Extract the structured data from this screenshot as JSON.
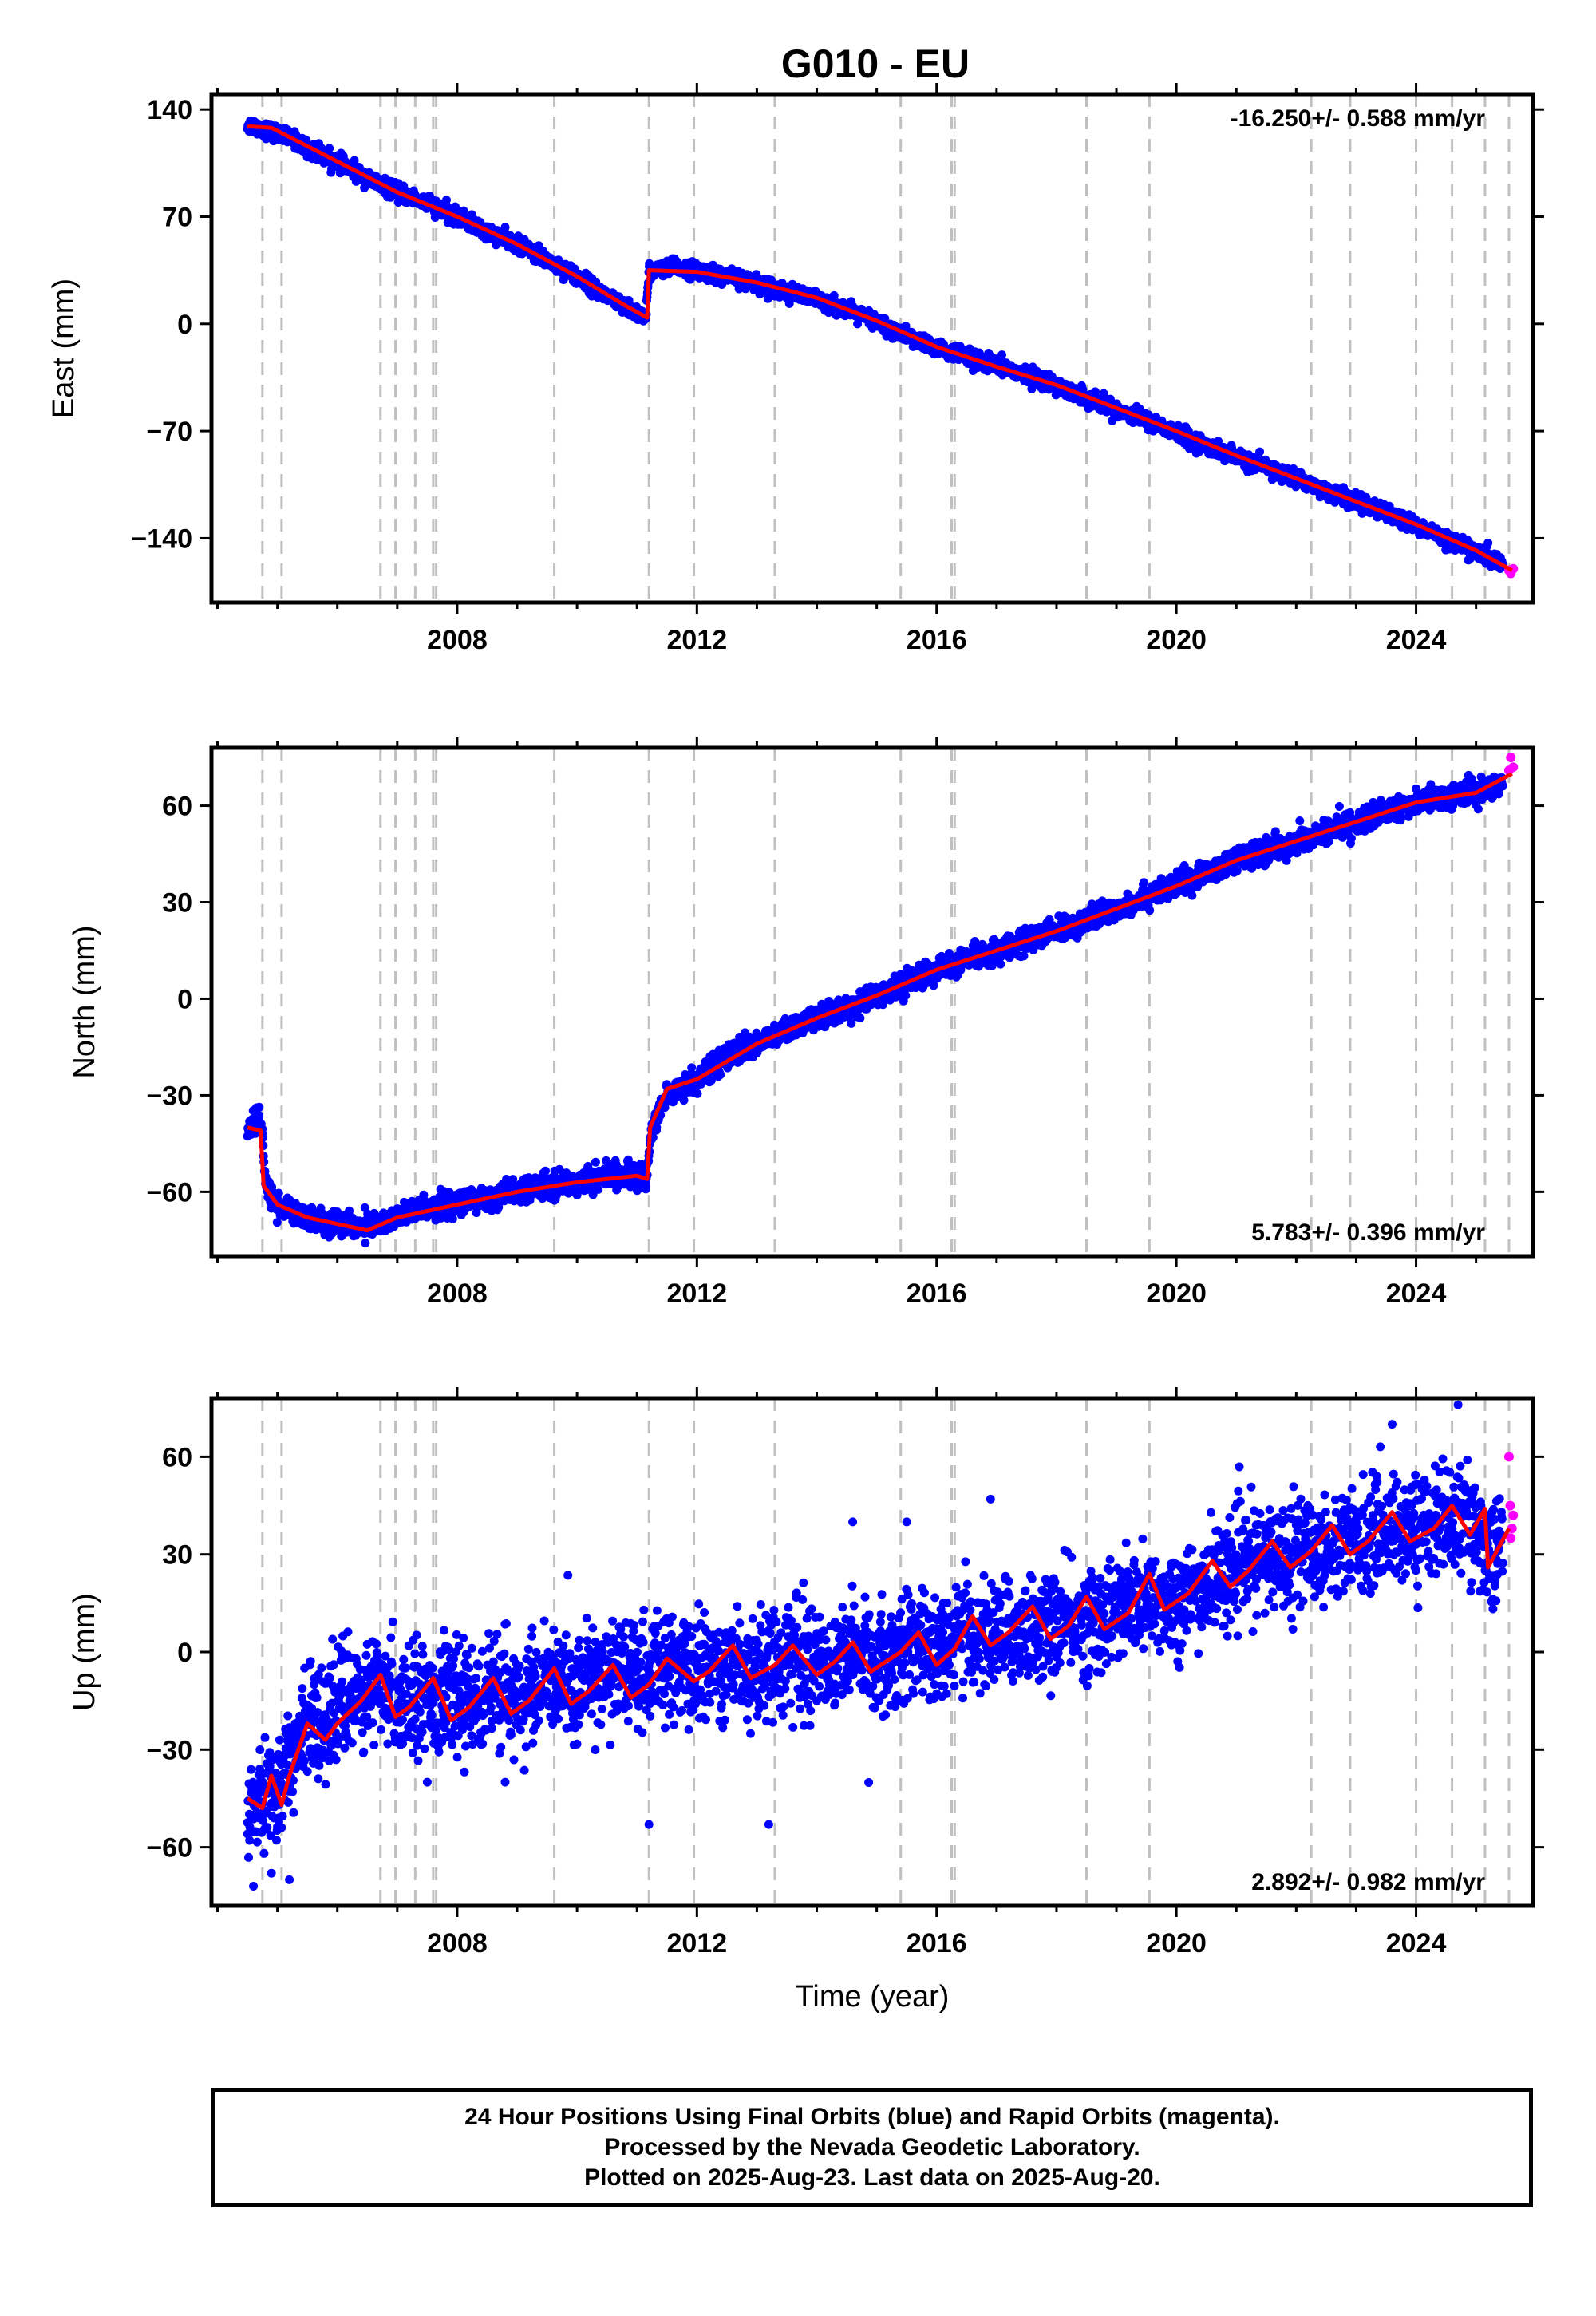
{
  "title": "G010 - EU",
  "colors": {
    "final_points": "#0000ff",
    "rapid_points": "#ff00ff",
    "model_line": "#ff0000",
    "event_lines": "#c0c0c0",
    "frame": "#000000"
  },
  "caption": {
    "line1": "24 Hour Positions Using Final Orbits (blue) and Rapid Orbits (magenta).",
    "line2": "Processed by the Nevada Geodetic Laboratory.",
    "line3": "Plotted on 2025-Aug-23. Last data on 2025-Aug-20."
  },
  "chart_data": [
    {
      "type": "scatter",
      "title": "G010 - EU",
      "xlabel": "",
      "ylabel": "East (mm)",
      "xlim": [
        2003.9,
        2025.95
      ],
      "ylim": [
        -182,
        150
      ],
      "xticks": [
        2008,
        2012,
        2016,
        2020,
        2024
      ],
      "yticks": [
        140,
        70,
        0,
        -70,
        -140
      ],
      "ytick_labels": [
        "140",
        "70",
        "0",
        "−70",
        "−140"
      ],
      "rate_label": "-16.250+/- 0.588 mm/yr",
      "rate_position": "top-right",
      "grid": false,
      "event_lines": [
        2004.75,
        2005.07,
        2006.72,
        2006.97,
        2007.3,
        2007.6,
        2007.65,
        2009.62,
        2011.2,
        2011.95,
        2013.3,
        2015.4,
        2016.25,
        2016.3,
        2018.5,
        2019.55,
        2022.25,
        2022.9,
        2024.0,
        2024.6,
        2025.15,
        2025.55
      ],
      "noise_mm": 2.5,
      "outliers": [],
      "series": [
        {
          "name": "Final Orbits",
          "color": "#0000ff",
          "x": [
            2004.5,
            2004.8,
            2005.3,
            2005.6,
            2006.0,
            2006.5,
            2007.0,
            2007.5,
            2008.0,
            2008.5,
            2009.0,
            2009.5,
            2010.0,
            2010.5,
            2010.8,
            2011.15,
            2011.2,
            2011.6,
            2012.0,
            2012.5,
            2013.0,
            2013.5,
            2014.0,
            2014.5,
            2015.0,
            2015.5,
            2016.0,
            2016.5,
            2017.0,
            2017.5,
            2018.0,
            2018.5,
            2019.0,
            2019.5,
            2020.0,
            2020.5,
            2021.0,
            2021.5,
            2022.0,
            2022.5,
            2023.0,
            2023.5,
            2024.0,
            2024.5,
            2025.0,
            2025.45
          ],
          "y": [
            130,
            127,
            120,
            112,
            106,
            95,
            86,
            79,
            70,
            60,
            52,
            42,
            31,
            18,
            11,
            4,
            34,
            37,
            35,
            31,
            27,
            21,
            16,
            9,
            1,
            -8,
            -16,
            -22,
            -27,
            -33,
            -40,
            -48,
            -56,
            -63,
            -71,
            -80,
            -87,
            -94,
            -101,
            -109,
            -116,
            -124,
            -132,
            -140,
            -149,
            -157
          ]
        },
        {
          "name": "Rapid Orbits",
          "color": "#ff00ff",
          "x": [
            2025.55,
            2025.58,
            2025.62
          ],
          "y": [
            -161,
            -163,
            -160
          ]
        }
      ],
      "model": {
        "name": "Model",
        "color": "#ff0000",
        "x": [
          2004.5,
          2004.9,
          2005.2,
          2006.0,
          2007.0,
          2008.0,
          2009.0,
          2010.0,
          2010.8,
          2011.17,
          2011.2,
          2012.0,
          2013.0,
          2014.0,
          2015.0,
          2016.0,
          2017.0,
          2018.0,
          2019.0,
          2020.0,
          2021.0,
          2022.0,
          2023.0,
          2024.0,
          2025.0,
          2025.6
        ],
        "y": [
          129,
          128,
          122,
          106,
          86,
          70,
          52,
          31,
          12,
          4,
          35,
          34,
          27,
          17,
          2,
          -15,
          -28,
          -40,
          -55,
          -70,
          -86,
          -101,
          -116,
          -131,
          -148,
          -161
        ]
      }
    },
    {
      "type": "scatter",
      "xlabel": "",
      "ylabel": "North (mm)",
      "xlim": [
        2003.9,
        2025.95
      ],
      "ylim": [
        -80,
        78
      ],
      "xticks": [
        2008,
        2012,
        2016,
        2020,
        2024
      ],
      "yticks": [
        60,
        30,
        0,
        -30,
        -60
      ],
      "ytick_labels": [
        "60",
        "30",
        "0",
        "−30",
        "−60"
      ],
      "rate_label": "5.783+/- 0.396 mm/yr",
      "rate_position": "bottom-right",
      "grid": false,
      "event_lines": [
        2004.75,
        2005.07,
        2006.72,
        2006.97,
        2007.3,
        2007.6,
        2007.65,
        2009.62,
        2011.2,
        2011.95,
        2013.3,
        2015.4,
        2016.25,
        2016.3,
        2018.5,
        2019.55,
        2022.25,
        2022.9,
        2024.0,
        2024.6,
        2025.15,
        2025.55
      ],
      "noise_mm": 1.8,
      "outliers": [],
      "series": [
        {
          "name": "Final Orbits",
          "color": "#0000ff",
          "x": [
            2004.5,
            2004.7,
            2004.75,
            2004.8,
            2005.0,
            2005.5,
            2006.0,
            2006.5,
            2007.0,
            2007.5,
            2008.0,
            2008.5,
            2009.0,
            2009.5,
            2010.0,
            2010.5,
            2011.0,
            2011.15,
            2011.25,
            2011.5,
            2012.0,
            2012.5,
            2013.0,
            2013.5,
            2014.0,
            2014.5,
            2015.0,
            2015.5,
            2016.0,
            2016.5,
            2017.0,
            2017.5,
            2018.0,
            2018.5,
            2019.0,
            2019.5,
            2020.0,
            2020.5,
            2021.0,
            2021.5,
            2022.0,
            2022.5,
            2023.0,
            2023.5,
            2024.0,
            2024.5,
            2025.0,
            2025.45
          ],
          "y": [
            -40,
            -38,
            -42,
            -58,
            -64,
            -68,
            -70,
            -71,
            -68,
            -65,
            -64,
            -62,
            -60,
            -58,
            -57,
            -55,
            -55,
            -56,
            -40,
            -30,
            -25,
            -18,
            -14,
            -10,
            -6,
            -3,
            1,
            5,
            9,
            12,
            15,
            18,
            21,
            24,
            28,
            32,
            35,
            39,
            43,
            46,
            49,
            52,
            55,
            58,
            61,
            63,
            64,
            67
          ]
        },
        {
          "name": "Rapid Orbits",
          "color": "#ff00ff",
          "x": [
            2025.55,
            2025.58,
            2025.62
          ],
          "y": [
            71,
            75,
            72
          ]
        }
      ],
      "model": {
        "name": "Model",
        "color": "#ff0000",
        "x": [
          2004.5,
          2004.72,
          2004.77,
          2005.0,
          2005.5,
          2006.0,
          2006.5,
          2007.0,
          2008.0,
          2009.0,
          2010.0,
          2011.0,
          2011.17,
          2011.22,
          2011.5,
          2012.0,
          2013.0,
          2014.0,
          2015.0,
          2016.0,
          2017.0,
          2018.0,
          2019.0,
          2020.0,
          2021.0,
          2022.0,
          2023.0,
          2024.0,
          2025.0,
          2025.6
        ],
        "y": [
          -40,
          -41,
          -58,
          -64,
          -68,
          -70,
          -72,
          -68,
          -64,
          -60,
          -57,
          -55,
          -56,
          -40,
          -28,
          -25,
          -14,
          -6,
          1,
          9,
          15,
          21,
          28,
          35,
          43,
          49,
          55,
          61,
          64,
          70
        ]
      }
    },
    {
      "type": "scatter",
      "xlabel": "Time (year)",
      "ylabel": "Up (mm)",
      "xlim": [
        2003.9,
        2025.95
      ],
      "ylim": [
        -78,
        78
      ],
      "xticks": [
        2008,
        2012,
        2016,
        2020,
        2024
      ],
      "yticks": [
        60,
        30,
        0,
        -30,
        -60
      ],
      "ytick_labels": [
        "60",
        "30",
        "0",
        "−30",
        "−60"
      ],
      "rate_label": "2.892+/- 0.982 mm/yr",
      "rate_position": "bottom-right",
      "grid": false,
      "event_lines": [
        2004.75,
        2005.07,
        2006.72,
        2006.97,
        2007.3,
        2007.6,
        2007.65,
        2009.62,
        2011.2,
        2011.95,
        2013.3,
        2015.4,
        2016.25,
        2016.3,
        2018.5,
        2019.55,
        2022.25,
        2022.9,
        2024.0,
        2024.6,
        2025.15,
        2025.55
      ],
      "noise_mm": 8,
      "outliers": [
        [
          2004.6,
          -72
        ],
        [
          2004.9,
          -68
        ],
        [
          2005.2,
          -70
        ],
        [
          2011.2,
          -53
        ],
        [
          2013.2,
          -53
        ],
        [
          2014.6,
          40
        ],
        [
          2015.5,
          40
        ],
        [
          2016.9,
          47
        ],
        [
          2024.7,
          76
        ],
        [
          2023.6,
          70
        ],
        [
          2007.5,
          -40
        ],
        [
          2008.8,
          -40
        ]
      ],
      "series": [
        {
          "name": "Final Orbits",
          "color": "#0000ff",
          "x": [
            2004.5,
            2005.0,
            2005.5,
            2006.0,
            2006.5,
            2007.0,
            2007.5,
            2008.0,
            2008.5,
            2009.0,
            2009.5,
            2010.0,
            2010.5,
            2011.0,
            2011.5,
            2012.0,
            2012.5,
            2013.0,
            2013.5,
            2014.0,
            2014.5,
            2015.0,
            2015.5,
            2016.0,
            2016.5,
            2017.0,
            2017.5,
            2018.0,
            2018.5,
            2019.0,
            2019.5,
            2020.0,
            2020.5,
            2020.8,
            2021.0,
            2021.5,
            2022.0,
            2022.5,
            2023.0,
            2023.5,
            2024.0,
            2024.5,
            2025.0,
            2025.2,
            2025.45
          ],
          "y": [
            -44,
            -42,
            -22,
            -17,
            -12,
            -14,
            -13,
            -15,
            -13,
            -14,
            -10,
            -11,
            -6,
            -7,
            -5,
            -6,
            -3,
            -5,
            -1,
            -3,
            -1,
            -2,
            2,
            2,
            5,
            5,
            7,
            8,
            10,
            12,
            15,
            16,
            20,
            24,
            26,
            29,
            31,
            32,
            35,
            37,
            38,
            41,
            39,
            30,
            34
          ]
        },
        {
          "name": "Rapid Orbits",
          "color": "#ff00ff",
          "x": [
            2025.55,
            2025.57,
            2025.6,
            2025.62,
            2025.58
          ],
          "y": [
            60,
            45,
            38,
            42,
            35
          ]
        }
      ],
      "model": {
        "name": "Model",
        "color": "#ff0000",
        "x": [
          2004.5,
          2004.75,
          2004.9,
          2005.07,
          2005.2,
          2005.5,
          2005.8,
          2006.0,
          2006.4,
          2006.72,
          2006.97,
          2007.2,
          2007.6,
          2007.9,
          2008.2,
          2008.6,
          2008.9,
          2009.2,
          2009.62,
          2009.9,
          2010.2,
          2010.6,
          2010.9,
          2011.2,
          2011.5,
          2011.95,
          2012.2,
          2012.6,
          2012.9,
          2013.3,
          2013.6,
          2014.0,
          2014.3,
          2014.6,
          2014.9,
          2015.4,
          2015.7,
          2016.0,
          2016.3,
          2016.6,
          2016.9,
          2017.2,
          2017.6,
          2017.9,
          2018.2,
          2018.5,
          2018.8,
          2019.2,
          2019.55,
          2019.8,
          2020.2,
          2020.6,
          2020.9,
          2021.2,
          2021.6,
          2021.9,
          2022.25,
          2022.6,
          2022.9,
          2023.2,
          2023.6,
          2023.9,
          2024.3,
          2024.6,
          2024.9,
          2025.15,
          2025.2,
          2025.55
        ],
        "y": [
          -45,
          -48,
          -38,
          -47,
          -38,
          -22,
          -27,
          -22,
          -15,
          -7,
          -20,
          -17,
          -8,
          -21,
          -17,
          -8,
          -19,
          -15,
          -5,
          -16,
          -12,
          -4,
          -14,
          -10,
          -2,
          -9,
          -6,
          2,
          -8,
          -4,
          2,
          -7,
          -3,
          3,
          -6,
          0,
          6,
          -4,
          1,
          11,
          2,
          6,
          14,
          4,
          8,
          17,
          7,
          12,
          24,
          13,
          18,
          28,
          20,
          25,
          34,
          26,
          31,
          39,
          30,
          34,
          43,
          34,
          38,
          45,
          36,
          44,
          26,
          38
        ]
      }
    }
  ]
}
